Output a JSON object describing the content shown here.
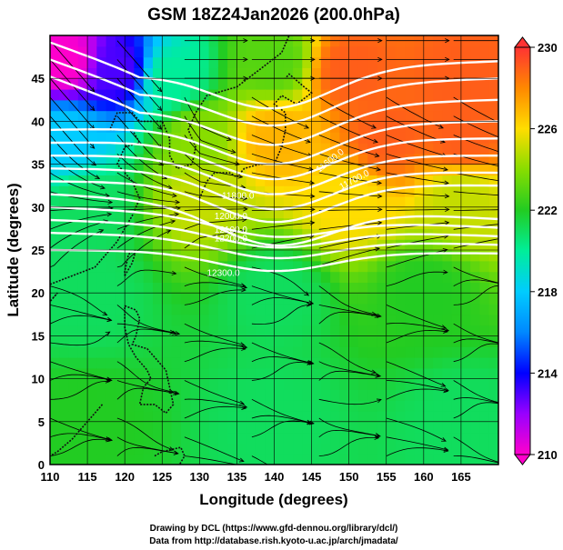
{
  "title": "GSM 18Z24Jan2026 (200.0hPa)",
  "credits": [
    "Drawing by DCL (https://www.gfd-dennou.org/library/dcl/)",
    "Data from http://database.rish.kyoto-u.ac.jp/arch/jmadata/"
  ],
  "chart_data": {
    "type": "heatmap",
    "title": "GSM 18Z24Jan2026 (200.0hPa)",
    "xlabel": "Longitude (degrees)",
    "ylabel": "Latitude  (degrees)",
    "xlim": [
      110,
      170
    ],
    "ylim": [
      0,
      50
    ],
    "x_ticks": [
      110,
      115,
      120,
      125,
      130,
      135,
      140,
      145,
      150,
      155,
      160,
      165
    ],
    "y_ticks": [
      0,
      5,
      10,
      15,
      20,
      25,
      30,
      35,
      40,
      45
    ],
    "grid": true,
    "colorbar": {
      "range": [
        210,
        230
      ],
      "ticks": [
        210,
        214,
        218,
        222,
        226,
        230
      ],
      "placement": "right"
    },
    "colors": {
      "low": "#ff00cc",
      "mid_low": "#0000ff",
      "mid": "#00ccff",
      "green": "#22cc22",
      "yellow": "#ffdd00",
      "high": "#ff3333"
    },
    "contour_labels": [
      "11600.0",
      "11700.0",
      "11800.0",
      "12000.0",
      "12100.0",
      "12200.0",
      "12300.0"
    ],
    "field_samples": [
      {
        "lon": 112,
        "lat": 47,
        "value": 210
      },
      {
        "lon": 119,
        "lat": 46,
        "value": 213
      },
      {
        "lon": 126,
        "lat": 45,
        "value": 220
      },
      {
        "lon": 140,
        "lat": 47,
        "value": 223
      },
      {
        "lon": 150,
        "lat": 46,
        "value": 229
      },
      {
        "lon": 165,
        "lat": 45,
        "value": 229
      },
      {
        "lon": 112,
        "lat": 38,
        "value": 218
      },
      {
        "lon": 130,
        "lat": 38,
        "value": 224
      },
      {
        "lon": 140,
        "lat": 38,
        "value": 227
      },
      {
        "lon": 155,
        "lat": 38,
        "value": 229
      },
      {
        "lon": 165,
        "lat": 38,
        "value": 229
      },
      {
        "lon": 130,
        "lat": 31,
        "value": 225
      },
      {
        "lon": 150,
        "lat": 31,
        "value": 226
      },
      {
        "lon": 165,
        "lat": 31,
        "value": 225
      },
      {
        "lon": 115,
        "lat": 30,
        "value": 221
      },
      {
        "lon": 115,
        "lat": 20,
        "value": 221
      },
      {
        "lon": 140,
        "lat": 20,
        "value": 221
      },
      {
        "lon": 160,
        "lat": 20,
        "value": 222
      },
      {
        "lon": 115,
        "lat": 5,
        "value": 222
      },
      {
        "lon": 140,
        "lat": 5,
        "value": 221
      },
      {
        "lon": 165,
        "lat": 5,
        "value": 221
      }
    ]
  }
}
